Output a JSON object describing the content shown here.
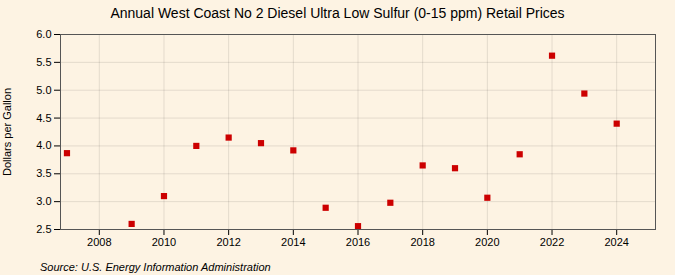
{
  "chart_data": {
    "type": "scatter",
    "title": "Annual West Coast No 2 Diesel Ultra Low Sulfur (0-15 ppm) Retail Prices",
    "ylabel": "Dollars per Gallon",
    "source": "Source: U.S. Energy Information Administration",
    "x": [
      2007,
      2009,
      2010,
      2011,
      2012,
      2013,
      2014,
      2015,
      2016,
      2017,
      2018,
      2019,
      2020,
      2021,
      2022,
      2023,
      2024
    ],
    "values": [
      3.87,
      2.6,
      3.1,
      4.0,
      4.15,
      4.05,
      3.92,
      2.89,
      2.56,
      2.98,
      3.65,
      3.6,
      3.07,
      3.85,
      5.62,
      4.94,
      4.4
    ],
    "color": "#cc0000",
    "marker": "square",
    "xlim": [
      2006.8,
      2025.2
    ],
    "xticks": [
      2008,
      2010,
      2012,
      2014,
      2016,
      2018,
      2020,
      2022,
      2024
    ],
    "ylim": [
      2.5,
      6.0
    ],
    "yticks": [
      2.5,
      {
        "value": 3.0,
        "label": "3.0"
      },
      3.5,
      {
        "value": 4.0,
        "label": "4.0"
      },
      4.5,
      {
        "value": 5.0,
        "label": "5.0"
      },
      5.5,
      {
        "value": 6.0,
        "label": "6.0"
      }
    ],
    "grid": true
  }
}
